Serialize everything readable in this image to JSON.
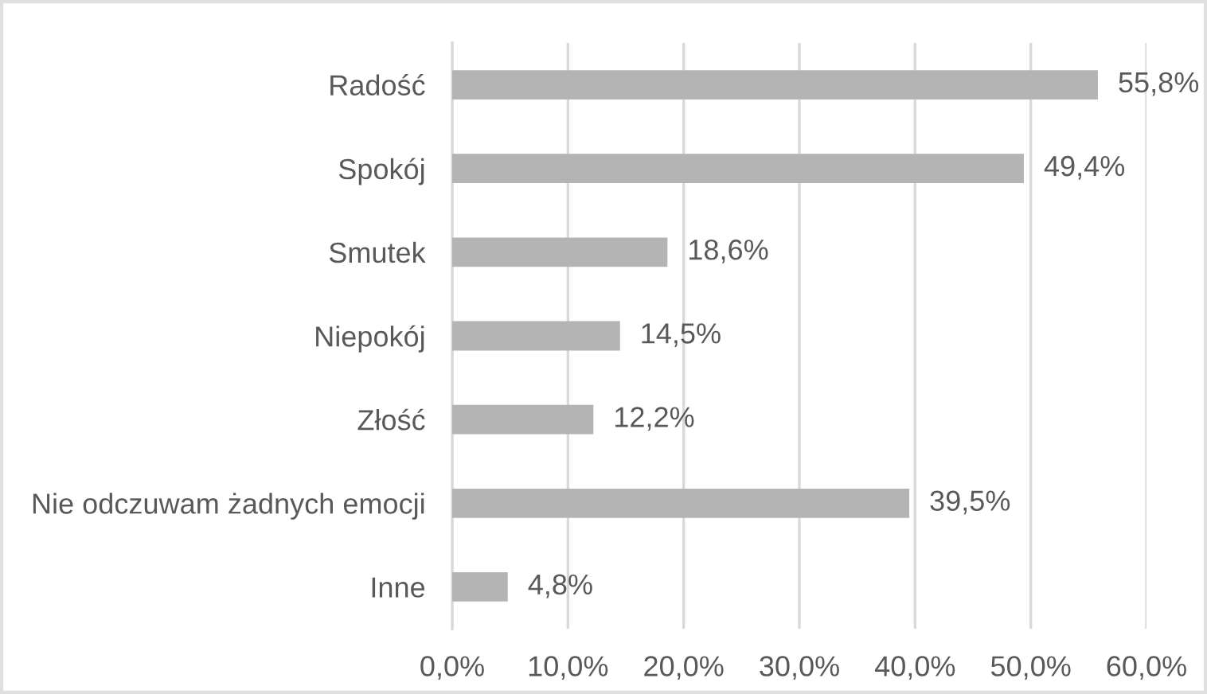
{
  "chart_data": {
    "type": "bar",
    "orientation": "horizontal",
    "categories": [
      "Radość",
      "Spokój",
      "Smutek",
      "Niepokój",
      "Złość",
      "Nie odczuwam żadnych emocji",
      "Inne"
    ],
    "values": [
      55.8,
      49.4,
      18.6,
      14.5,
      12.2,
      39.5,
      4.8
    ],
    "color": "#b4b4b4",
    "value_labels": [
      "55,8%",
      "49,4%",
      "18,6%",
      "14,5%",
      "12,2%",
      "39,5%",
      "4,8%"
    ],
    "xlim": [
      0,
      60
    ],
    "xticks": [
      {
        "value": 0,
        "label": "0,0%"
      },
      {
        "value": 10,
        "label": "10,0%"
      },
      {
        "value": 20,
        "label": "20,0%"
      },
      {
        "value": 30,
        "label": "30,0%"
      },
      {
        "value": 40,
        "label": "40,0%"
      },
      {
        "value": 50,
        "label": "50,0%"
      },
      {
        "value": 60,
        "label": "60,0%"
      }
    ],
    "grid": "x"
  }
}
